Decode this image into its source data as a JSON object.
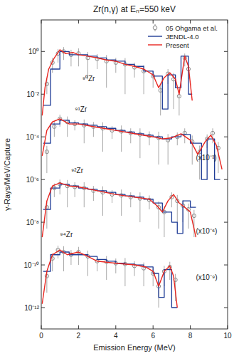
{
  "chart_data": {
    "type": "line",
    "title": "Zr(n,γ) at Eₙ=550 keV",
    "x_label": "Emission Energy (MeV)",
    "y_label": "γ-Rays/MeV/Capture",
    "log": "y",
    "legend": "upper right",
    "xlim": [
      0,
      10
    ],
    "ylim": [
      1e-13,
      30
    ],
    "xticks": [
      0,
      2,
      4,
      6,
      8,
      10
    ],
    "yticks": [
      {
        "value": 1,
        "label": "10⁰"
      },
      {
        "value": 0.01,
        "label": "10⁻²"
      },
      {
        "value": 0.0001,
        "label": "10⁻⁴"
      },
      {
        "value": 1e-06,
        "label": "10⁻⁶"
      },
      {
        "value": 1e-08,
        "label": "10⁻⁸"
      },
      {
        "value": 1e-10,
        "label": "10⁻¹⁰"
      },
      {
        "value": 1e-12,
        "label": "10⁻¹²"
      }
    ],
    "annotations": [
      {
        "text": "⁹⁰Zr",
        "x": 2.2,
        "y": 0.04
      },
      {
        "text": "⁹¹Zr",
        "x": 1.8,
        "y": 0.0015
      },
      {
        "text": "⁹²Zr",
        "x": 1.6,
        "y": 2e-06
      },
      {
        "text": "⁹⁴Zr",
        "x": 1.0,
        "y": 2e-09
      },
      {
        "text": "(x10⁻³)",
        "x": 8.3,
        "y": 8e-06
      },
      {
        "text": "(x10⁻⁶)",
        "x": 8.3,
        "y": 3e-09
      },
      {
        "text": "(x10⁻⁹)",
        "x": 8.3,
        "y": 2e-11
      }
    ],
    "series": [
      {
        "name": "05 Ohgama et al.",
        "type": "scatter",
        "marker": "circle",
        "color": "#8c8c8c",
        "x": [
          0.3,
          0.6,
          0.9,
          1.2,
          1.6,
          2.0,
          2.5,
          3.0,
          3.5,
          4.0,
          4.5,
          5.0,
          5.5,
          6.0,
          6.4,
          6.8,
          7.1,
          7.4,
          7.7,
          7.9
        ],
        "values": [
          0.03,
          0.3,
          0.8,
          1.0,
          0.7,
          0.8,
          0.5,
          0.45,
          0.35,
          0.3,
          0.25,
          0.18,
          0.12,
          0.07,
          0.015,
          0.09,
          0.05,
          0.008,
          0.5,
          0.15
        ],
        "error": [
          0.02,
          0.2,
          0.5,
          0.6,
          0.5,
          0.6,
          0.45,
          0.3,
          0.33,
          0.2,
          0.24,
          0.12,
          0.11,
          0.05,
          0.014,
          0.06,
          0.048,
          0.007,
          0.3,
          0.1
        ]
      },
      {
        "name": "JENDL-4.0",
        "type": "line",
        "line_style": "steps",
        "color": "#1f3c96",
        "x": [
          0.1,
          0.5,
          1.0,
          1.5,
          2.0,
          2.5,
          3.0,
          3.5,
          4.0,
          4.5,
          5.0,
          5.5,
          6.0,
          6.5,
          6.8,
          7.2,
          7.5,
          7.9,
          8.1
        ],
        "values": [
          0.003,
          0.15,
          1.0,
          0.7,
          0.7,
          0.6,
          0.5,
          0.4,
          0.35,
          0.25,
          0.2,
          0.12,
          0.07,
          0.002,
          0.08,
          0.02,
          0.6,
          0.01,
          0.01
        ]
      },
      {
        "name": "Present",
        "type": "line",
        "line_style": "solid",
        "color": "#e8251f",
        "x": [
          0.05,
          0.2,
          0.4,
          0.7,
          1.0,
          1.3,
          1.7,
          2.0,
          2.5,
          3.0,
          3.5,
          4.0,
          4.5,
          5.0,
          5.5,
          6.0,
          6.3,
          6.6,
          6.9,
          7.2,
          7.4,
          7.7,
          7.9,
          8.1
        ],
        "values": [
          0.001,
          0.02,
          0.15,
          0.5,
          1.2,
          0.8,
          0.9,
          0.7,
          0.6,
          0.5,
          0.4,
          0.35,
          0.25,
          0.2,
          0.15,
          0.08,
          0.02,
          0.06,
          0.1,
          0.05,
          0.01,
          0.6,
          0.2,
          0.005
        ]
      },
      {
        "type": "scatter",
        "marker": "circle",
        "color": "#8c8c8c",
        "x": [
          0.3,
          0.7,
          1.0,
          1.4,
          1.8,
          2.3,
          2.8,
          3.3,
          3.8,
          4.3,
          4.8,
          5.3,
          5.8,
          6.3,
          6.8,
          7.3,
          7.7,
          8.1,
          8.5,
          8.9,
          9.2,
          9.5
        ],
        "values": [
          2e-05,
          0.0003,
          0.0007,
          0.0005,
          0.0004,
          0.00035,
          0.0003,
          0.00025,
          0.0002,
          0.00018,
          0.00015,
          0.00013,
          0.00011,
          9e-05,
          7e-05,
          0.0001,
          0.00015,
          6e-05,
          2e-05,
          8e-05,
          0.00015,
          3e-05
        ],
        "error": [
          1.8e-05,
          0.0002,
          0.0004,
          0.0004,
          0.0002,
          0.0003,
          0.0002,
          0.00023,
          0.00012,
          0.00016,
          0.0001,
          0.00012,
          7e-05,
          8.5e-05,
          6.5e-05,
          6e-05,
          0.0001,
          5.5e-05,
          1.9e-05,
          5e-05,
          0.0001,
          2.8e-05
        ]
      },
      {
        "type": "line",
        "line_style": "steps",
        "color": "#1f3c96",
        "x": [
          0.1,
          0.5,
          1.0,
          1.5,
          2.0,
          2.5,
          3.0,
          3.5,
          4.0,
          4.5,
          5.0,
          5.5,
          6.0,
          6.5,
          7.0,
          7.5,
          8.0,
          8.6,
          8.9,
          9.3,
          9.6
        ],
        "values": [
          5e-05,
          0.0004,
          0.0006,
          0.00045,
          0.0004,
          0.00035,
          0.0003,
          0.00025,
          0.0002,
          0.00017,
          0.00014,
          0.00012,
          0.0001,
          8e-05,
          0.0001,
          0.00013,
          5e-05,
          1e-06,
          8e-05,
          1e-06,
          1e-06
        ]
      },
      {
        "type": "line",
        "line_style": "solid",
        "color": "#e8251f",
        "x": [
          0.05,
          0.3,
          0.6,
          1.0,
          1.5,
          2.0,
          3.0,
          4.0,
          5.0,
          6.0,
          6.5,
          7.0,
          7.5,
          8.0,
          8.4,
          8.8,
          9.1,
          9.4,
          9.7
        ],
        "values": [
          1.3e-05,
          0.0002,
          0.0005,
          0.0007,
          0.0004,
          0.0004,
          0.00028,
          0.0002,
          0.00014,
          0.0001,
          8e-05,
          9e-05,
          0.00014,
          7e-05,
          1.5e-05,
          6e-05,
          0.00012,
          4e-05,
          3e-06
        ]
      },
      {
        "type": "scatter",
        "marker": "circle",
        "color": "#8c8c8c",
        "x": [
          0.3,
          0.7,
          1.0,
          1.4,
          1.8,
          2.3,
          2.8,
          3.3,
          3.8,
          4.3,
          4.8,
          5.3,
          5.8,
          6.3,
          6.6,
          7.0,
          7.3,
          7.6,
          7.9,
          8.2
        ],
        "values": [
          5e-08,
          4e-07,
          6e-07,
          5e-07,
          4.5e-07,
          4e-07,
          3e-07,
          2.5e-07,
          2e-07,
          1.8e-07,
          1.5e-07,
          1.3e-07,
          1.1e-07,
          5e-08,
          3e-08,
          1.5e-07,
          1e-07,
          6e-08,
          4e-08,
          2e-08
        ],
        "error": [
          4.5e-08,
          2.5e-07,
          4e-07,
          4.5e-07,
          3e-07,
          3.5e-07,
          2e-07,
          2.3e-07,
          1.2e-07,
          1.6e-07,
          1e-07,
          1.2e-07,
          7e-08,
          4.5e-08,
          2.8e-08,
          1e-07,
          9e-08,
          5e-08,
          3.5e-08,
          1.8e-08
        ]
      },
      {
        "type": "line",
        "line_style": "steps",
        "color": "#1f3c96",
        "x": [
          0.1,
          0.5,
          1.0,
          1.5,
          2.0,
          2.5,
          3.0,
          3.5,
          4.0,
          4.5,
          5.0,
          5.5,
          6.0,
          6.5,
          7.0,
          7.3,
          7.6,
          8.0,
          8.3
        ],
        "values": [
          4e-08,
          4e-07,
          6e-07,
          5e-07,
          4e-07,
          3.5e-07,
          3e-07,
          2.5e-07,
          2e-07,
          1.7e-07,
          1.5e-07,
          1.2e-07,
          8e-08,
          3e-08,
          1e-08,
          3e-09,
          1e-07,
          5e-08,
          5e-08
        ]
      },
      {
        "type": "line",
        "line_style": "solid",
        "color": "#e8251f",
        "x": [
          0.05,
          0.3,
          0.6,
          1.0,
          1.5,
          2.0,
          3.0,
          4.0,
          5.0,
          5.8,
          6.2,
          6.5,
          6.8,
          7.1,
          7.4,
          7.7,
          8.0,
          8.3
        ],
        "values": [
          2e-09,
          1e-07,
          5e-07,
          7e-07,
          5e-07,
          4.5e-07,
          3e-07,
          2e-07,
          1.5e-07,
          1.2e-07,
          6e-08,
          3e-08,
          1e-07,
          2e-07,
          8e-08,
          5e-08,
          3e-08,
          2e-09
        ]
      },
      {
        "type": "scatter",
        "marker": "circle",
        "color": "#8c8c8c",
        "x": [
          0.3,
          0.6,
          0.9,
          1.2,
          1.6,
          2.0,
          2.5,
          3.0,
          3.5,
          4.0,
          4.5,
          5.0,
          5.5,
          6.0,
          6.3,
          6.6,
          6.9,
          7.2
        ],
        "values": [
          3e-11,
          2e-10,
          5e-10,
          4e-10,
          3e-10,
          4e-10,
          2.5e-10,
          1.5e-10,
          1.4e-10,
          1.2e-10,
          1.1e-10,
          9e-11,
          7e-11,
          4e-11,
          1e-11,
          5e-11,
          8e-11,
          2e-11
        ],
        "error": [
          2.5e-11,
          1.5e-10,
          3e-10,
          3.5e-10,
          2e-10,
          3e-10,
          2.2e-10,
          1e-10,
          1.2e-10,
          8e-11,
          1e-10,
          6e-11,
          6e-11,
          3e-11,
          9e-12,
          4e-11,
          6e-11,
          1.8e-11
        ]
      },
      {
        "type": "line",
        "line_style": "steps",
        "color": "#1f3c96",
        "x": [
          0.1,
          0.5,
          1.0,
          1.5,
          2.0,
          2.5,
          3.0,
          3.5,
          4.0,
          4.5,
          5.0,
          5.5,
          6.0,
          6.3,
          6.6,
          7.0,
          7.3
        ],
        "values": [
          5e-11,
          3e-10,
          4e-10,
          3e-10,
          3e-10,
          2.5e-10,
          1.8e-10,
          1.5e-10,
          1.2e-10,
          1.1e-10,
          1e-10,
          8e-11,
          4e-11,
          3e-12,
          6e-11,
          1e-12,
          1e-12
        ]
      },
      {
        "type": "line",
        "line_style": "solid",
        "color": "#e8251f",
        "x": [
          0.05,
          0.3,
          0.6,
          1.0,
          1.4,
          2.0,
          2.5,
          3.0,
          4.0,
          5.0,
          5.6,
          6.0,
          6.3,
          6.6,
          6.9,
          7.1,
          7.3
        ],
        "values": [
          1.5e-12,
          5e-11,
          3e-10,
          5e-10,
          3e-10,
          4e-10,
          2.5e-10,
          1.5e-10,
          1.2e-10,
          1e-10,
          8e-11,
          5e-11,
          1e-11,
          5e-11,
          9e-11,
          3e-11,
          1e-12
        ]
      }
    ]
  }
}
